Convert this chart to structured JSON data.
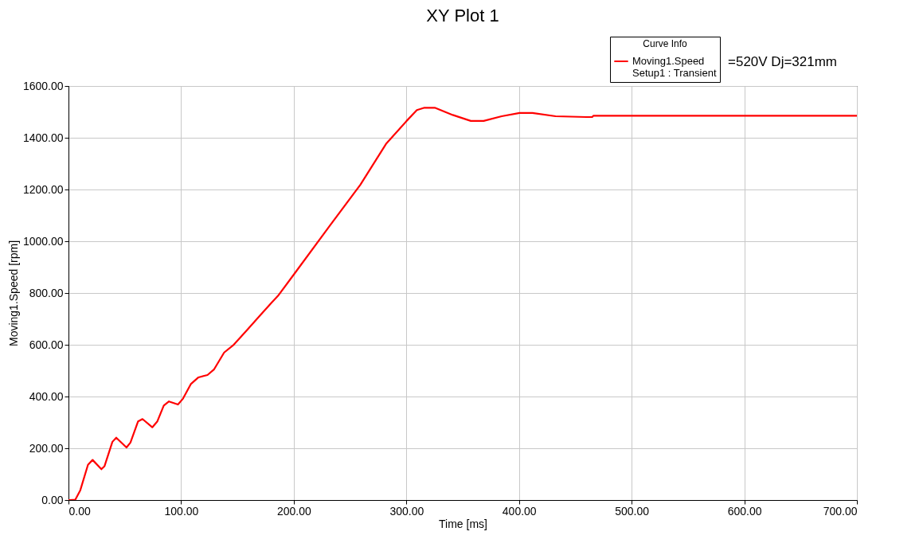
{
  "chart_data": {
    "type": "line",
    "title": "XY Plot 1",
    "xlabel": "Time [ms]",
    "ylabel": "Moving1.Speed [rpm]",
    "legend_title": "Curve Info",
    "annotations": [
      "Setup1 : Transient",
      "=520V  Dj=321mm"
    ],
    "x": [
      0,
      1.4,
      6,
      10.5,
      17.3,
      21.4,
      29.2,
      32,
      39,
      42.4,
      51.5,
      55,
      61.8,
      65.7,
      74.4,
      78.9,
      84.6,
      89.2,
      97.2,
      101.7,
      108.6,
      115.4,
      123.4,
      129.1,
      138.2,
      146.2,
      158.7,
      170.2,
      180.4,
      186,
      201,
      231.8,
      259.1,
      281.9,
      300.2,
      309.3,
      316.1,
      325.2,
      341.2,
      357.2,
      368.6,
      384.6,
      400.5,
      411.9,
      432.5,
      459.8,
      465,
      466,
      550,
      650,
      700
    ],
    "series": [
      {
        "name": "Moving1.Speed",
        "color": "#ff0000",
        "values": [
          0,
          0,
          1,
          38,
          136,
          155,
          119,
          131,
          225,
          241,
          203,
          222,
          304,
          313,
          281,
          304,
          365,
          381,
          369,
          392,
          448,
          474,
          483,
          504,
          570,
          598,
          658,
          714,
          763,
          789,
          877,
          1059,
          1218,
          1376,
          1465,
          1507,
          1516,
          1516,
          1488,
          1465,
          1465,
          1483,
          1496,
          1496,
          1483,
          1480,
          1480,
          1485,
          1485,
          1485,
          1485
        ]
      }
    ],
    "xlim": [
      0,
      700
    ],
    "ylim": [
      0,
      1600
    ],
    "xticks": [
      {
        "value": 0,
        "label": "0.00"
      },
      {
        "value": 100,
        "label": "100.00"
      },
      {
        "value": 200,
        "label": "200.00"
      },
      {
        "value": 300,
        "label": "300.00"
      },
      {
        "value": 400,
        "label": "400.00"
      },
      {
        "value": 500,
        "label": "500.00"
      },
      {
        "value": 600,
        "label": "600.00"
      },
      {
        "value": 700,
        "label": "700.00"
      }
    ],
    "yticks": [
      {
        "value": 0,
        "label": "0.00"
      },
      {
        "value": 200,
        "label": "200.00"
      },
      {
        "value": 400,
        "label": "400.00"
      },
      {
        "value": 600,
        "label": "600.00"
      },
      {
        "value": 800,
        "label": "800.00"
      },
      {
        "value": 1000,
        "label": "1000.00"
      },
      {
        "value": 1200,
        "label": "1200.00"
      },
      {
        "value": 1400,
        "label": "1400.00"
      },
      {
        "value": 1600,
        "label": "1600.00"
      }
    ],
    "grid": true,
    "legend": "top right",
    "marker": "none",
    "line_style": "solid"
  }
}
